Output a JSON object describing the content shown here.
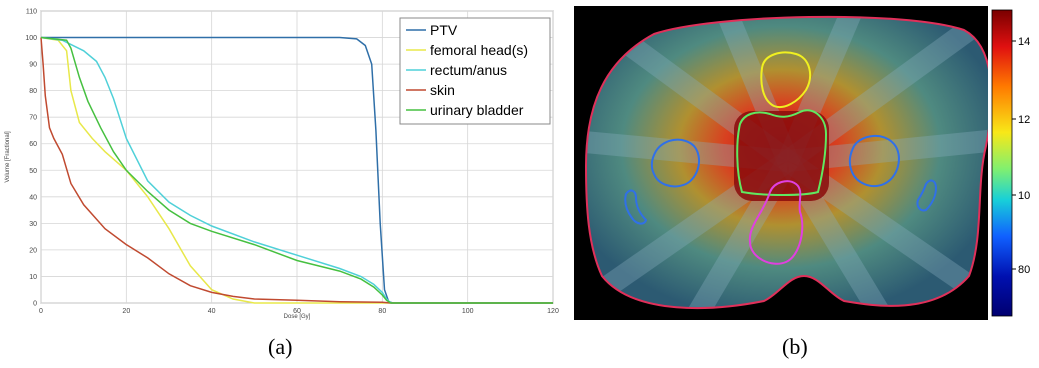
{
  "captions": {
    "a": "(a)",
    "b": "(b)"
  },
  "chart_data": [
    {
      "type": "line",
      "xlabel": "Dose [Gy]",
      "ylabel": "Volume [Fractional]",
      "xlim": [
        0,
        120
      ],
      "ylim": [
        0,
        110
      ],
      "xticks": [
        0,
        20,
        40,
        60,
        80,
        100,
        120
      ],
      "yticks": [
        0,
        10,
        20,
        30,
        40,
        50,
        60,
        70,
        80,
        90,
        100,
        110
      ],
      "grid": true,
      "legend": "top-right",
      "series": [
        {
          "name": "PTV",
          "color": "#2f6fa8",
          "x": [
            0,
            70,
            74,
            76,
            77.5,
            78.5,
            79.5,
            80.5,
            81.5,
            82.5,
            120
          ],
          "y": [
            100,
            100,
            99.5,
            97,
            90,
            65,
            30,
            5,
            0.5,
            0,
            0
          ]
        },
        {
          "name": "femoral head(s)",
          "color": "#e8e84a",
          "x": [
            0,
            4,
            6,
            7,
            9,
            12,
            15,
            20,
            25,
            30,
            35,
            40,
            45,
            50,
            120
          ],
          "y": [
            100,
            99,
            95,
            80,
            68,
            62,
            57,
            50,
            40,
            28,
            14,
            5,
            1.5,
            0,
            0
          ]
        },
        {
          "name": "rectum/anus",
          "color": "#4fd0d8",
          "x": [
            0,
            5,
            10,
            13,
            15,
            17,
            20,
            25,
            30,
            35,
            40,
            50,
            60,
            70,
            75,
            78,
            80,
            81,
            82,
            120
          ],
          "y": [
            100,
            99,
            95,
            91,
            85,
            77,
            62,
            46,
            38,
            33,
            29,
            23,
            18,
            13,
            10,
            7,
            4,
            1.5,
            0,
            0
          ]
        },
        {
          "name": "skin",
          "color": "#c04a30",
          "x": [
            0,
            0.5,
            1,
            2,
            3,
            5,
            7,
            10,
            15,
            20,
            25,
            30,
            35,
            40,
            45,
            50,
            60,
            70,
            80,
            82,
            120
          ],
          "y": [
            100,
            90,
            78,
            66,
            62,
            56,
            45,
            37,
            28,
            22,
            17,
            11,
            6.5,
            4,
            2.5,
            1.5,
            1,
            0.5,
            0.3,
            0,
            0
          ]
        },
        {
          "name": "urinary bladder",
          "color": "#46c040",
          "x": [
            0,
            6,
            7,
            9,
            11,
            14,
            17,
            20,
            25,
            30,
            35,
            40,
            50,
            60,
            70,
            75,
            78,
            80,
            81,
            82,
            120
          ],
          "y": [
            100,
            99,
            96,
            85,
            76,
            66,
            57,
            50,
            42,
            35,
            30,
            27,
            22,
            16,
            12,
            9,
            6,
            3,
            1,
            0,
            0
          ]
        }
      ]
    },
    {
      "type": "heatmap",
      "colorbar_ticks": [
        "14",
        "12",
        "10",
        "80"
      ],
      "colorbar_colors": [
        "#7a0000",
        "#e01010",
        "#ff7a00",
        "#f8e818",
        "#80f070",
        "#18d0d8",
        "#1060ff",
        "#0010b0",
        "#000070"
      ]
    }
  ]
}
